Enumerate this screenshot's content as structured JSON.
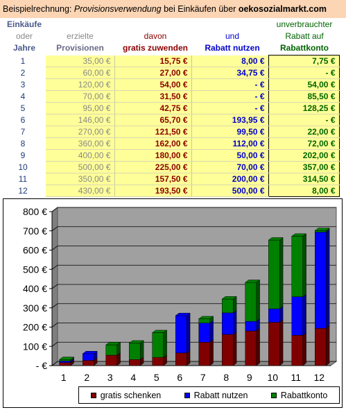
{
  "topbar": {
    "prefix": "Beispielrechnung: ",
    "italic": "Provisionsverwendung",
    "middle": " bei Einkäufen über ",
    "site": "oekosozialmarkt.com"
  },
  "headers": {
    "col1": [
      "Einkäufe",
      "oder",
      "Jahre"
    ],
    "col2": [
      "erzielte",
      "Provisionen"
    ],
    "col3": [
      "davon",
      "gratis zuwenden"
    ],
    "col4": [
      "und",
      "Rabatt nutzen"
    ],
    "col5": [
      "unverbrauchter",
      "Rabatt auf",
      "Rabattkonto"
    ]
  },
  "rows": [
    {
      "year": "1",
      "provision": "35,00 €",
      "gratis": "15,75 €",
      "rabatt": "8,00 €",
      "konto": "7,75 €"
    },
    {
      "year": "2",
      "provision": "60,00 €",
      "gratis": "27,00 €",
      "rabatt": "34,75 €",
      "konto": "-    €"
    },
    {
      "year": "3",
      "provision": "120,00 €",
      "gratis": "54,00 €",
      "rabatt": "-    €",
      "konto": "54,00 €"
    },
    {
      "year": "4",
      "provision": "70,00 €",
      "gratis": "31,50 €",
      "rabatt": "-    €",
      "konto": "85,50 €"
    },
    {
      "year": "5",
      "provision": "95,00 €",
      "gratis": "42,75 €",
      "rabatt": "-    €",
      "konto": "128,25 €"
    },
    {
      "year": "6",
      "provision": "146,00 €",
      "gratis": "65,70 €",
      "rabatt": "193,95 €",
      "konto": "-    €"
    },
    {
      "year": "7",
      "provision": "270,00 €",
      "gratis": "121,50 €",
      "rabatt": "99,50 €",
      "konto": "22,00 €"
    },
    {
      "year": "8",
      "provision": "360,00 €",
      "gratis": "162,00 €",
      "rabatt": "112,00 €",
      "konto": "72,00 €"
    },
    {
      "year": "9",
      "provision": "400,00 €",
      "gratis": "180,00 €",
      "rabatt": "50,00 €",
      "konto": "202,00 €"
    },
    {
      "year": "10",
      "provision": "500,00 €",
      "gratis": "225,00 €",
      "rabatt": "70,00 €",
      "konto": "357,00 €"
    },
    {
      "year": "11",
      "provision": "350,00 €",
      "gratis": "157,50 €",
      "rabatt": "200,00 €",
      "konto": "314,50 €"
    },
    {
      "year": "12",
      "provision": "430,00 €",
      "gratis": "193,50 €",
      "rabatt": "500,00 €",
      "konto": "8,00 €"
    }
  ],
  "chart_data": {
    "type": "bar",
    "stacked": true,
    "three_d": true,
    "categories": [
      "1",
      "2",
      "3",
      "4",
      "5",
      "6",
      "7",
      "8",
      "9",
      "10",
      "11",
      "12"
    ],
    "series": [
      {
        "name": "gratis schenken",
        "color": "#800000",
        "values": [
          15.75,
          27,
          54,
          31.5,
          42.75,
          65.7,
          121.5,
          162,
          180,
          225,
          157.5,
          193.5
        ]
      },
      {
        "name": "Rabatt nutzen",
        "color": "#0000ff",
        "values": [
          8,
          34.75,
          0,
          0,
          0,
          193.95,
          99.5,
          112,
          50,
          70,
          200,
          500
        ]
      },
      {
        "name": "Rabattkonto",
        "color": "#008000",
        "values": [
          7.75,
          0,
          54,
          85.5,
          128.25,
          0,
          22,
          72,
          202,
          357,
          314.5,
          8
        ]
      }
    ],
    "ylim": [
      0,
      800
    ],
    "yticks": [
      0,
      100,
      200,
      300,
      400,
      500,
      600,
      700,
      800
    ],
    "ytick_labels": [
      "- €",
      "100 €",
      "200 €",
      "300 €",
      "400 €",
      "500 €",
      "600 €",
      "700 €",
      "800 €"
    ],
    "grid": true,
    "legend_position": "bottom"
  }
}
